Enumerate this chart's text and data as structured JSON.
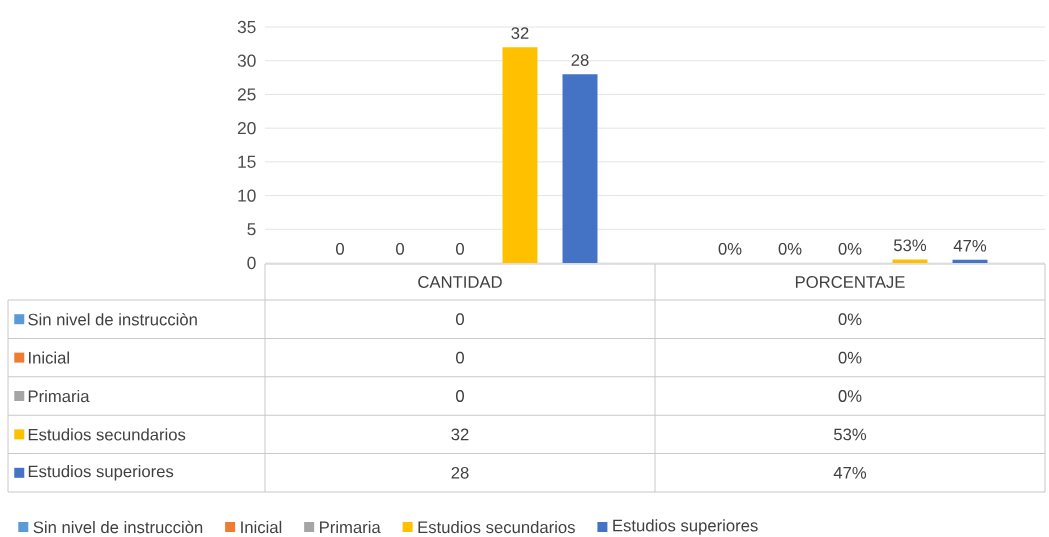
{
  "chart_data": {
    "type": "bar",
    "categories": [
      "CANTIDAD",
      "PORCENTAJE"
    ],
    "series": [
      {
        "name": "Sin nivel de instrucciòn",
        "color": "#5b9bd5",
        "values": [
          0,
          0
        ],
        "value_labels": [
          "0",
          "0%"
        ]
      },
      {
        "name": "Inicial",
        "color": "#ed7d31",
        "values": [
          0,
          0
        ],
        "value_labels": [
          "0",
          "0%"
        ]
      },
      {
        "name": "Primaria",
        "color": "#a5a5a5",
        "values": [
          0,
          0
        ],
        "value_labels": [
          "0",
          "0%"
        ]
      },
      {
        "name": "Estudios secundarios",
        "color": "#ffc000",
        "values": [
          32,
          0.53
        ],
        "value_labels": [
          "32",
          "53%"
        ]
      },
      {
        "name": "Estudios superiores",
        "color": "#4472c4",
        "values": [
          28,
          0.47
        ],
        "value_labels": [
          "28",
          "47%"
        ]
      }
    ],
    "ylim": [
      0,
      35
    ],
    "yticks": [
      0,
      5,
      10,
      15,
      20,
      25,
      30,
      35
    ],
    "grid": "y",
    "legend": "bottom"
  }
}
